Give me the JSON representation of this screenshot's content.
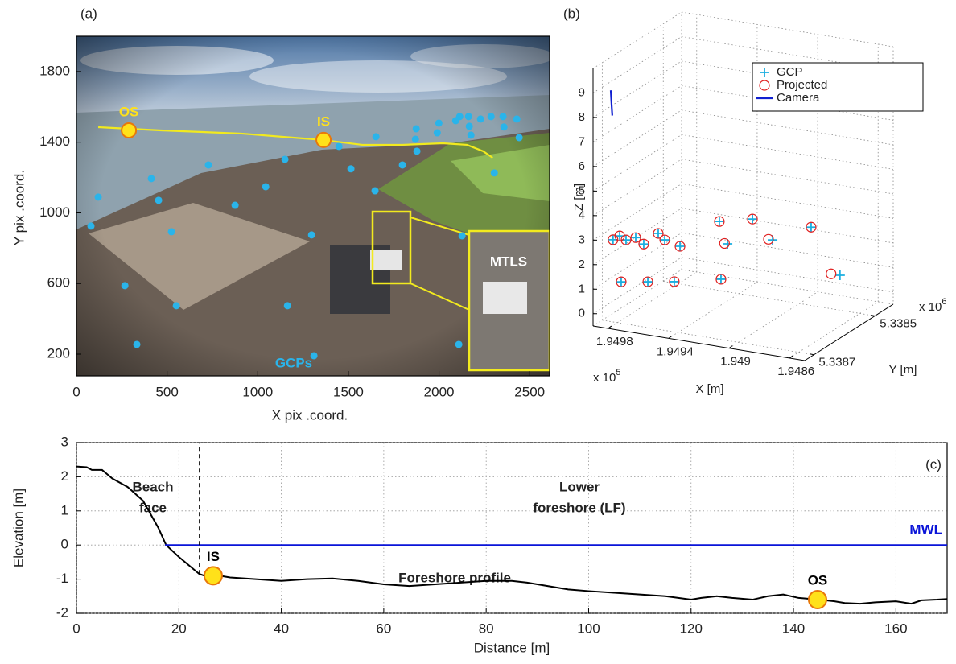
{
  "chart_data": [
    {
      "type": "image",
      "title": "(a)",
      "xlabel": "X pix .coord.",
      "ylabel": "Y pix .coord.",
      "xlim": [
        0,
        2610
      ],
      "ylim": [
        77,
        2000
      ],
      "xticks": [
        0,
        500,
        1000,
        1500,
        2000,
        2500
      ],
      "yticks": [
        200,
        600,
        1000,
        1400,
        1800
      ],
      "annotations": [
        "MTLS"
      ],
      "series": [
        {
          "name": "GCPs",
          "type": "scatter",
          "marker": "dot",
          "color": "#2ab4ea",
          "label_color": "#2ab4ea",
          "x": [
            80,
            120,
            267,
            333,
            413,
            453,
            524,
            551,
            728,
            875,
            1044,
            1150,
            1164,
            1297,
            1310,
            1448,
            1514,
            1652,
            1647,
            1798,
            1874,
            1878,
            1870,
            1990,
            1999,
            2092,
            2114,
            2163,
            2167,
            2176,
            2229,
            2287,
            2353,
            2358,
            2305,
            2127,
            2442,
            2109,
            2429
          ],
          "y": [
            925,
            1089,
            588,
            255,
            1194,
            1071,
            893,
            474,
            1271,
            1043,
            1148,
            1303,
            474,
            875,
            191,
            1376,
            1249,
            1431,
            1125,
            1271,
            1476,
            1349,
            1417,
            1453,
            1508,
            1522,
            1545,
            1545,
            1490,
            1440,
            1531,
            1545,
            1545,
            1486,
            1226,
            870,
            1426,
            255,
            1531
          ]
        },
        {
          "type": "line",
          "color": "#f2ea1e",
          "x": [
            120,
            466,
            910,
            1354,
            1576,
            1798,
            2021,
            2154,
            2243,
            2296
          ],
          "y": [
            1485,
            1467,
            1449,
            1413,
            1385,
            1385,
            1394,
            1385,
            1349,
            1312
          ]
        },
        {
          "name": "OS",
          "type": "scatter",
          "marker": "circle",
          "color": "#ffe11a",
          "label_color": "#ffe11a",
          "x": [
            289
          ],
          "y": [
            1467
          ]
        },
        {
          "name": "IS",
          "type": "scatter",
          "marker": "circle",
          "color": "#ffe11a",
          "label_color": "#ffe11a",
          "x": [
            1363
          ],
          "y": [
            1413
          ]
        }
      ]
    },
    {
      "type": "scatter3d",
      "title": "(b)",
      "xlabel": "X [m]",
      "ylabel": "Y [m]",
      "zlabel": "Z [m]",
      "xlim": [
        194990,
        194850
      ],
      "ylim": [
        5338730,
        5338440
      ],
      "zlim": [
        -0.5,
        10
      ],
      "xticks": [
        {
          "value": 194980,
          "label": "1.9498"
        },
        {
          "value": 194940,
          "label": "1.9494"
        },
        {
          "value": 194900,
          "label": "1.949"
        },
        {
          "value": 194860,
          "label": "1.9486"
        }
      ],
      "yticks": [
        {
          "value": 5338700,
          "label": "5.3387"
        },
        {
          "value": 5338500,
          "label": "5.3385"
        }
      ],
      "zticks": [
        0,
        1,
        2,
        3,
        4,
        5,
        6,
        7,
        8,
        9
      ],
      "x_multiplier": {
        "base": "x 10",
        "exponent": "5"
      },
      "y_multiplier": {
        "base": "x 10",
        "exponent": "6"
      },
      "grid": true,
      "legend": "upper right",
      "series": [
        {
          "name": "GCP",
          "type": "scatter",
          "marker": "+",
          "color": "#1aaee0",
          "x": [
            194988.5,
            194984.1,
            194979.9,
            194973.5,
            194968.2,
            194958.6,
            194954.3,
            194944.2,
            194941.6,
            194936.2,
            194919.7,
            194906.4,
            194880.9,
            194861.8,
            194983.1,
            194965.5,
            194948,
            194917.1
          ],
          "y": [
            5338672,
            5338672,
            5338672,
            5338672,
            5338672,
            5338672,
            5338672,
            5338672,
            5338556,
            5338556,
            5338556,
            5338556,
            5338556,
            5338556,
            5338672,
            5338672,
            5338672,
            5338672
          ],
          "z": [
            2.57,
            2.77,
            2.65,
            2.81,
            2.6,
            3.13,
            2.91,
            2.75,
            2.87,
            2.01,
            3.19,
            2.47,
            3.25,
            1.48,
            0.91,
            1.09,
            1.27,
            1.68
          ]
        },
        {
          "name": "Projected",
          "type": "scatter",
          "marker": "o",
          "color": "#e02020",
          "x": [
            194988.5,
            194984.1,
            194979.9,
            194973.5,
            194968.2,
            194958.6,
            194954.3,
            194944.2,
            194941.6,
            194938.2,
            194919.7,
            194909.1,
            194880.9,
            194867.7,
            194983.1,
            194965.5,
            194948,
            194917.1
          ],
          "y": [
            5338672,
            5338672,
            5338672,
            5338672,
            5338672,
            5338672,
            5338672,
            5338672,
            5338556,
            5338556,
            5338556,
            5338556,
            5338556,
            5338556,
            5338672,
            5338672,
            5338672,
            5338672
          ],
          "z": [
            2.57,
            2.77,
            2.65,
            2.81,
            2.6,
            3.13,
            2.91,
            2.75,
            2.87,
            2.01,
            3.19,
            2.47,
            3.25,
            1.48,
            0.91,
            1.09,
            1.27,
            1.68
          ]
        },
        {
          "name": "Camera",
          "type": "line",
          "color": "#1020d0",
          "x": [
            194990,
            194989.5,
            194989
          ],
          "y": [
            5338672,
            5338672,
            5338672
          ],
          "z": [
            8.65,
            8.1,
            7.63
          ]
        }
      ]
    },
    {
      "type": "line",
      "title": "(c)",
      "xlabel": "Distance [m]",
      "ylabel": "Elevation [m]",
      "xlim": [
        0,
        170
      ],
      "ylim": [
        -2,
        3
      ],
      "xticks": [
        0,
        20,
        40,
        60,
        80,
        100,
        120,
        140,
        160
      ],
      "yticks": [
        -2,
        -1,
        0,
        1,
        2,
        3
      ],
      "grid": true,
      "annotations": [
        "Beach",
        "face",
        "Lower",
        "foreshore (LF)",
        "Foreshore profile"
      ],
      "series": [
        {
          "type": "line",
          "color": "#000000",
          "x": [
            0,
            2,
            3,
            5,
            7,
            10,
            13,
            16,
            17.5,
            20,
            22,
            24,
            25,
            26,
            28,
            30,
            35,
            40,
            45,
            50,
            55,
            60,
            65,
            70,
            75,
            80,
            85,
            88,
            92,
            96,
            100,
            105,
            110,
            115,
            120,
            122,
            125,
            128,
            132,
            135,
            138,
            141,
            145,
            148,
            150,
            153,
            156,
            160,
            163,
            165,
            168,
            170
          ],
          "values": [
            2.3,
            2.28,
            2.2,
            2.2,
            1.95,
            1.7,
            1.3,
            0.5,
            0,
            -0.35,
            -0.6,
            -0.85,
            -0.9,
            -0.85,
            -0.9,
            -0.95,
            -1.0,
            -1.05,
            -1.0,
            -0.98,
            -1.05,
            -1.15,
            -1.2,
            -1.15,
            -1.1,
            -1.05,
            -1.05,
            -1.1,
            -1.2,
            -1.3,
            -1.35,
            -1.4,
            -1.45,
            -1.5,
            -1.6,
            -1.55,
            -1.5,
            -1.55,
            -1.6,
            -1.5,
            -1.45,
            -1.55,
            -1.6,
            -1.65,
            -1.7,
            -1.72,
            -1.68,
            -1.65,
            -1.72,
            -1.62,
            -1.6,
            -1.58
          ]
        },
        {
          "name": "MWL",
          "type": "line",
          "color": "#0a14d8",
          "label_color": "#0a14d8",
          "x": [
            17.3,
            170
          ],
          "values": [
            0,
            0
          ]
        },
        {
          "type": "line",
          "color": "#000000",
          "dash": true,
          "x": [
            24,
            24
          ],
          "values": [
            -0.85,
            3
          ]
        },
        {
          "name": "IS",
          "type": "scatter",
          "marker": "circle",
          "color": "#ffe11a",
          "label_color": "#000000",
          "x": [
            26.7
          ],
          "values": [
            -0.9
          ]
        },
        {
          "name": "OS",
          "type": "scatter",
          "marker": "circle",
          "color": "#ffe11a",
          "label_color": "#000000",
          "x": [
            144.7
          ],
          "values": [
            -1.6
          ]
        }
      ]
    }
  ]
}
